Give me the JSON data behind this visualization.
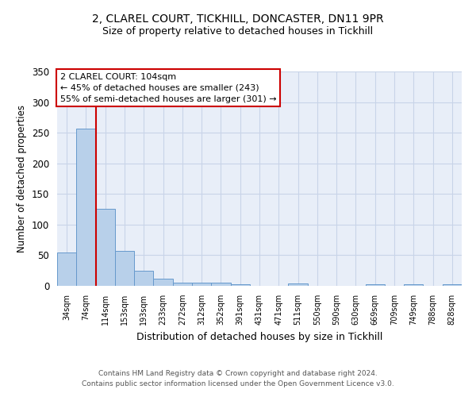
{
  "title1": "2, CLAREL COURT, TICKHILL, DONCASTER, DN11 9PR",
  "title2": "Size of property relative to detached houses in Tickhill",
  "xlabel": "Distribution of detached houses by size in Tickhill",
  "ylabel": "Number of detached properties",
  "categories": [
    "34sqm",
    "74sqm",
    "114sqm",
    "153sqm",
    "193sqm",
    "233sqm",
    "272sqm",
    "312sqm",
    "352sqm",
    "391sqm",
    "431sqm",
    "471sqm",
    "511sqm",
    "550sqm",
    "590sqm",
    "630sqm",
    "669sqm",
    "709sqm",
    "749sqm",
    "788sqm",
    "828sqm"
  ],
  "values": [
    55,
    257,
    126,
    57,
    25,
    12,
    5,
    5,
    5,
    3,
    0,
    0,
    4,
    0,
    0,
    0,
    3,
    0,
    3,
    0,
    3
  ],
  "bar_color": "#b8d0ea",
  "bar_edge_color": "#6699cc",
  "red_line_x": 2.0,
  "annotation_title": "2 CLAREL COURT: 104sqm",
  "annotation_line1": "← 45% of detached houses are smaller (243)",
  "annotation_line2": "55% of semi-detached houses are larger (301) →",
  "annotation_box_color": "#ffffff",
  "annotation_box_edge": "#cc0000",
  "red_line_color": "#cc0000",
  "grid_color": "#c8d4e8",
  "bg_color": "#e8eef8",
  "ylim": [
    0,
    350
  ],
  "yticks": [
    0,
    50,
    100,
    150,
    200,
    250,
    300,
    350
  ],
  "footer1": "Contains HM Land Registry data © Crown copyright and database right 2024.",
  "footer2": "Contains public sector information licensed under the Open Government Licence v3.0."
}
